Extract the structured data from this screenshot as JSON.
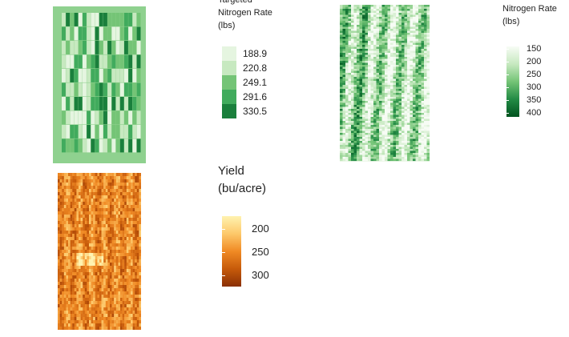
{
  "maps": [
    {
      "name": "targeted-nitrogen-map",
      "legend": {
        "title_lines": [
          "Targeted",
          "Nitrogen Rate",
          "(lbs)"
        ],
        "type": "discrete",
        "entries": [
          {
            "label": "188.9",
            "color": "#e5f5e0"
          },
          {
            "label": "220.8",
            "color": "#c7e9c0"
          },
          {
            "label": "249.1",
            "color": "#74c476"
          },
          {
            "label": "291.6",
            "color": "#41ab5d"
          },
          {
            "label": "330.5",
            "color": "#1a7f3c"
          }
        ]
      },
      "field_color": "#8fd18f"
    },
    {
      "name": "applied-nitrogen-map",
      "legend": {
        "title_lines": [
          "Nitrogen Rate",
          "(lbs)"
        ],
        "type": "continuous",
        "ticks": [
          "150",
          "200",
          "250",
          "300",
          "350",
          "400"
        ],
        "gradient": [
          "#f7fcf5",
          "#c7e9c0",
          "#74c476",
          "#238b45",
          "#00531f"
        ]
      }
    },
    {
      "name": "yield-map",
      "legend": {
        "title_lines": [
          "Yield",
          "(bu/acre)"
        ],
        "type": "continuous",
        "ticks": [
          "200",
          "250",
          "300"
        ],
        "gradient": [
          "#fff3b0",
          "#fdc86a",
          "#f08a24",
          "#c65a0a",
          "#8a3005"
        ]
      }
    }
  ]
}
